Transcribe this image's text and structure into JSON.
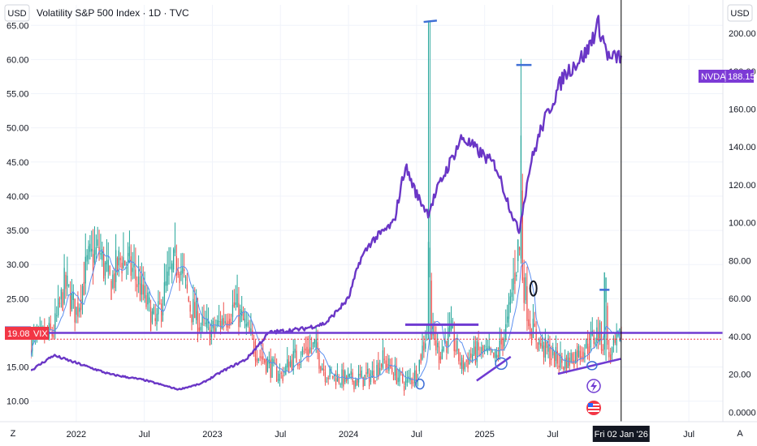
{
  "header": {
    "title": "Volatility S&P 500 Index · 1D · TVC",
    "left_currency": "USD",
    "right_currency": "USD"
  },
  "badges": {
    "level_value": "20.00",
    "vix_value": "19.08",
    "vix_label": "VIX",
    "nvda_label": "NVDA",
    "nvda_value": "188.15",
    "date_label": "Fri 02 Jan '26"
  },
  "corner_labels": {
    "bottom_left": "Z",
    "bottom_right": "A"
  },
  "colors": {
    "up": "#26a69a",
    "down": "#ef5350",
    "nvda_line": "#6a36c6",
    "drawing": "#6f3bd2",
    "ma_line": "#5b8ff0",
    "level_badge": "#5b62c9",
    "vix_badge": "#f23645",
    "nvda_badge": "#7c3ad6",
    "cursor": "#000000"
  },
  "icons": [
    "lightning-icon",
    "us-flag-icon"
  ],
  "chart_data": {
    "type": "candlestick-with-overlay",
    "title": "Volatility S&P 500 Index · 1D · TVC",
    "x_axis": {
      "ticks": [
        "2022",
        "Jul",
        "2023",
        "Jul",
        "2024",
        "Jul",
        "2025",
        "Jul",
        "Fri 02 Jan '26",
        "Jul"
      ],
      "range": [
        "2021-09",
        "2026-10"
      ]
    },
    "left_axis": {
      "currency": "USD",
      "ticks": [
        "65.00",
        "60.00",
        "55.00",
        "50.00",
        "45.00",
        "40.00",
        "35.00",
        "30.00",
        "25.00",
        "20.00",
        "19.08",
        "15.00",
        "10.00"
      ],
      "range": [
        7,
        68
      ]
    },
    "right_axis": {
      "currency": "USD",
      "ticks": [
        "200.00",
        "180.00",
        "160.00",
        "140.00",
        "120.00",
        "100.00",
        "80.00",
        "60.00",
        "40.00",
        "20.00",
        "0.0000"
      ],
      "range": [
        -5,
        215
      ]
    },
    "series": [
      {
        "name": "VIX",
        "axis": "left",
        "last": 19.08,
        "anchors": [
          [
            "2021-09",
            18.5
          ],
          [
            "2021-11",
            20
          ],
          [
            "2021-12",
            27
          ],
          [
            "2022-01",
            23
          ],
          [
            "2022-02",
            30
          ],
          [
            "2022-03",
            32
          ],
          [
            "2022-04",
            27
          ],
          [
            "2022-05",
            31
          ],
          [
            "2022-06",
            29
          ],
          [
            "2022-07",
            25
          ],
          [
            "2022-08",
            21
          ],
          [
            "2022-09",
            27
          ],
          [
            "2022-10",
            31
          ],
          [
            "2022-11",
            24
          ],
          [
            "2022-12",
            21
          ],
          [
            "2023-01",
            20
          ],
          [
            "2023-03",
            24
          ],
          [
            "2023-05",
            17
          ],
          [
            "2023-07",
            13.5
          ],
          [
            "2023-08",
            16
          ],
          [
            "2023-10",
            18
          ],
          [
            "2023-11",
            14
          ],
          [
            "2024-01",
            13
          ],
          [
            "2024-03",
            13.5
          ],
          [
            "2024-04",
            16
          ],
          [
            "2024-06",
            12.5
          ],
          [
            "2024-07",
            14
          ],
          [
            "2024-08",
            21
          ],
          [
            "2024-09",
            17
          ],
          [
            "2024-10",
            20
          ],
          [
            "2024-11",
            15
          ],
          [
            "2024-12",
            17
          ],
          [
            "2025-01",
            17
          ],
          [
            "2025-02",
            16
          ],
          [
            "2025-03",
            21
          ],
          [
            "2025-04",
            33
          ],
          [
            "2025-05",
            21
          ],
          [
            "2025-06",
            18
          ],
          [
            "2025-07",
            16.5
          ],
          [
            "2025-08",
            15.5
          ],
          [
            "2025-10",
            18
          ],
          [
            "2025-11",
            20
          ],
          [
            "2025-12",
            16.5
          ],
          [
            "2026-01",
            19.08
          ]
        ],
        "spikes": [
          [
            "2024-08-05",
            65.7
          ],
          [
            "2025-04-08",
            60.1
          ],
          [
            "2025-11-20",
            26.3
          ]
        ]
      },
      {
        "name": "NVDA",
        "axis": "right",
        "last": 188.15,
        "anchors": [
          [
            "2021-09",
            22
          ],
          [
            "2021-11",
            30
          ],
          [
            "2022-01",
            26
          ],
          [
            "2022-04",
            20
          ],
          [
            "2022-07",
            17
          ],
          [
            "2022-10",
            12
          ],
          [
            "2022-12",
            15
          ],
          [
            "2023-02",
            22
          ],
          [
            "2023-04",
            28
          ],
          [
            "2023-06",
            42
          ],
          [
            "2023-09",
            44
          ],
          [
            "2023-11",
            47
          ],
          [
            "2024-01",
            60
          ],
          [
            "2024-02",
            80
          ],
          [
            "2024-03",
            90
          ],
          [
            "2024-05",
            100
          ],
          [
            "2024-06",
            130
          ],
          [
            "2024-07",
            115
          ],
          [
            "2024-08",
            105
          ],
          [
            "2024-09",
            120
          ],
          [
            "2024-11",
            145
          ],
          [
            "2025-01",
            135
          ],
          [
            "2025-02",
            130
          ],
          [
            "2025-03",
            112
          ],
          [
            "2025-04",
            95
          ],
          [
            "2025-05",
            130
          ],
          [
            "2025-06",
            150
          ],
          [
            "2025-08",
            178
          ],
          [
            "2025-10",
            190
          ],
          [
            "2025-11",
            205
          ],
          [
            "2025-12",
            186
          ],
          [
            "2026-01",
            188.15
          ]
        ]
      }
    ],
    "horizontal_lines": [
      {
        "value": 20.0,
        "axis": "left"
      }
    ],
    "cursor": "2026-01-02"
  }
}
